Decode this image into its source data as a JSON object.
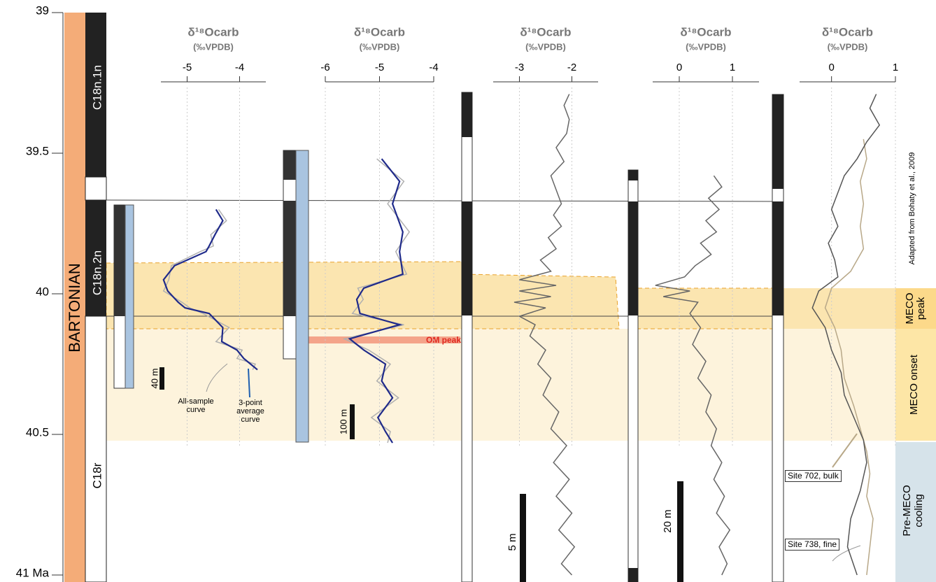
{
  "age_axis": {
    "ylim": [
      39,
      41
    ],
    "yticks": [
      39,
      39.5,
      40,
      40.5,
      {
        "value": 41,
        "label": "41 Ma"
      }
    ]
  },
  "stage": "BARTONIAN",
  "chrons": [
    "C18n.1n",
    "C18n.2n",
    "C18r"
  ],
  "zones": [
    "MECO peak",
    "MECO onset",
    "Pre-MECO cooling"
  ],
  "annotations": {
    "om_peak": "OM peak",
    "credit": "Adapted from Bohaty et al., 2009"
  },
  "scale_bars": [
    "40 m",
    "100 m",
    "5 m",
    "20 m"
  ],
  "chart_data": [
    {
      "type": "line",
      "title": "δ¹⁸Ocarb",
      "subtitle": "(‰VPDB)",
      "xlim": [
        -5.5,
        -3.5
      ],
      "xticks": [
        -5,
        -4
      ],
      "ylim": [
        39,
        41
      ],
      "series": [
        {
          "name": "All-sample curve",
          "color": "#b0b0b0",
          "ages": [
            39.7,
            39.74,
            39.79,
            39.83,
            39.85,
            39.9,
            39.95,
            39.99,
            40.03,
            40.05,
            40.07,
            40.12,
            40.17,
            40.2,
            40.23,
            40.25,
            40.27
          ],
          "values": [
            -4.4,
            -4.25,
            -4.55,
            -4.5,
            -4.75,
            -5.3,
            -5.35,
            -5.45,
            -5.1,
            -4.95,
            -4.7,
            -4.2,
            -4.45,
            -3.95,
            -4.05,
            -3.7,
            -3.75
          ]
        },
        {
          "name": "3-point average curve",
          "color": "#1f2a8a",
          "ages": [
            39.7,
            39.74,
            39.79,
            39.83,
            39.85,
            39.9,
            39.95,
            39.99,
            40.03,
            40.05,
            40.07,
            40.12,
            40.17,
            40.2,
            40.23,
            40.25,
            40.27
          ],
          "values": [
            -4.45,
            -4.32,
            -4.47,
            -4.58,
            -4.64,
            -5.24,
            -5.45,
            -5.37,
            -5.17,
            -5.04,
            -4.58,
            -4.32,
            -4.34,
            -4.05,
            -3.92,
            -3.79,
            -3.66
          ]
        }
      ]
    },
    {
      "type": "line",
      "title": "δ¹⁸Ocarb",
      "subtitle": "(‰VPDB)",
      "xlim": [
        -6,
        -4
      ],
      "xticks": [
        -6,
        -5,
        -4
      ],
      "ylim": [
        39,
        41
      ],
      "series": [
        {
          "color": "#b0b0b0",
          "ages": [
            39.52,
            39.6,
            39.68,
            39.78,
            39.85,
            39.93,
            39.98,
            40.02,
            40.07,
            40.11,
            40.16,
            40.2,
            40.25,
            40.31,
            40.37,
            40.44,
            40.49,
            40.53
          ],
          "values": [
            -5.05,
            -4.55,
            -4.85,
            -4.45,
            -4.7,
            -4.5,
            -5.4,
            -5.3,
            -5.5,
            -4.55,
            -5.65,
            -5.2,
            -4.8,
            -5.05,
            -4.65,
            -5.15,
            -4.8,
            -4.85
          ]
        },
        {
          "color": "#1f2a8a",
          "ages": [
            39.52,
            39.6,
            39.68,
            39.78,
            39.85,
            39.93,
            39.98,
            40.02,
            40.07,
            40.11,
            40.16,
            40.2,
            40.25,
            40.31,
            40.37,
            40.44,
            40.49,
            40.53
          ],
          "values": [
            -4.96,
            -4.63,
            -4.76,
            -4.57,
            -4.63,
            -4.57,
            -5.29,
            -5.42,
            -5.36,
            -4.63,
            -5.55,
            -5.29,
            -4.89,
            -4.96,
            -4.76,
            -5.03,
            -4.89,
            -4.76
          ]
        }
      ]
    },
    {
      "type": "line",
      "title": "δ¹⁸Ocarb",
      "subtitle": "(‰VPDB)",
      "xlim": [
        -3.5,
        -1.5
      ],
      "xticks": [
        -3,
        -2
      ],
      "ylim": [
        39,
        41
      ],
      "series": [
        {
          "color": "#666666",
          "ages": [
            39.29,
            39.33,
            39.38,
            39.43,
            39.48,
            39.53,
            39.58,
            39.63,
            39.68,
            39.72,
            39.76,
            39.8,
            39.84,
            39.88,
            39.92,
            39.95,
            39.97,
            39.99,
            40.01,
            40.03,
            40.05,
            40.08,
            40.11,
            40.15,
            40.2,
            40.25,
            40.3,
            40.36,
            40.42,
            40.48,
            40.54,
            40.6,
            40.66,
            40.72,
            40.78,
            40.84,
            40.9,
            40.96,
            41.0
          ],
          "values": [
            -2.05,
            -2.15,
            -2.05,
            -2.1,
            -2.3,
            -2.15,
            -2.4,
            -2.3,
            -2.2,
            -2.35,
            -2.2,
            -2.45,
            -2.3,
            -2.6,
            -2.4,
            -3.0,
            -2.3,
            -3.0,
            -2.4,
            -3.1,
            -2.5,
            -3.0,
            -2.7,
            -2.8,
            -2.5,
            -2.65,
            -2.4,
            -2.55,
            -2.25,
            -2.4,
            -2.1,
            -2.35,
            -2.05,
            -2.3,
            -2.0,
            -2.25,
            -1.95,
            -2.2,
            -2.0
          ]
        }
      ]
    },
    {
      "type": "line",
      "title": "δ¹⁸Ocarb",
      "subtitle": "(‰VPDB)",
      "xlim": [
        -0.5,
        1.5
      ],
      "xticks": [
        0,
        1
      ],
      "ylim": [
        39,
        41
      ],
      "series": [
        {
          "color": "#666666",
          "ages": [
            39.58,
            39.62,
            39.66,
            39.7,
            39.74,
            39.78,
            39.82,
            39.86,
            39.9,
            39.94,
            39.97,
            39.99,
            40.01,
            40.03,
            40.07,
            40.12,
            40.18,
            40.24,
            40.3,
            40.36,
            40.42,
            40.48,
            40.54,
            40.6,
            40.66,
            40.72,
            40.78,
            40.84,
            40.9,
            40.96,
            41.0
          ],
          "values": [
            0.65,
            0.8,
            0.55,
            0.75,
            0.5,
            0.7,
            0.4,
            0.6,
            0.3,
            0.1,
            -0.45,
            0.2,
            -0.3,
            0.35,
            0.2,
            0.4,
            0.25,
            0.5,
            0.35,
            0.6,
            0.5,
            0.7,
            0.6,
            0.8,
            0.65,
            0.85,
            0.7,
            0.95,
            0.75,
            0.9,
            0.8
          ]
        }
      ]
    },
    {
      "type": "line",
      "title": "δ¹⁸Ocarb",
      "subtitle": "(‰VPDB)",
      "xlim": [
        -0.5,
        1
      ],
      "xticks": [
        0,
        1
      ],
      "ylim": [
        39,
        41
      ],
      "series": [
        {
          "name": "Site 702, bulk",
          "color": "#b8a888",
          "ages": [
            39.45,
            39.52,
            39.6,
            39.68,
            39.76,
            39.84,
            39.92,
            39.98,
            40.05,
            40.12,
            40.2,
            40.3,
            40.4,
            40.48,
            40.56,
            40.64,
            40.72,
            40.8,
            40.9,
            41.0
          ],
          "values": [
            0.5,
            0.55,
            0.45,
            0.5,
            0.45,
            0.5,
            0.3,
            0.0,
            -0.1,
            0.05,
            0.15,
            0.2,
            0.35,
            0.45,
            0.55,
            0.6,
            0.55,
            0.65,
            0.6,
            0.55
          ]
        },
        {
          "name": "Site 738, fine",
          "color": "#555555",
          "ages": [
            39.29,
            39.34,
            39.4,
            39.46,
            39.52,
            39.58,
            39.64,
            39.7,
            39.76,
            39.82,
            39.88,
            39.94,
            39.99,
            40.05,
            40.12,
            40.2,
            40.28,
            40.36,
            40.44,
            40.52,
            40.6,
            40.7,
            40.8,
            40.9,
            41.0
          ],
          "values": [
            0.7,
            0.6,
            0.75,
            0.55,
            0.4,
            0.2,
            0.1,
            0.0,
            0.1,
            -0.05,
            0.05,
            0.1,
            -0.2,
            -0.3,
            -0.1,
            0.0,
            0.15,
            0.2,
            0.35,
            0.5,
            0.55,
            0.45,
            0.3,
            0.25,
            0.4
          ]
        }
      ]
    }
  ]
}
